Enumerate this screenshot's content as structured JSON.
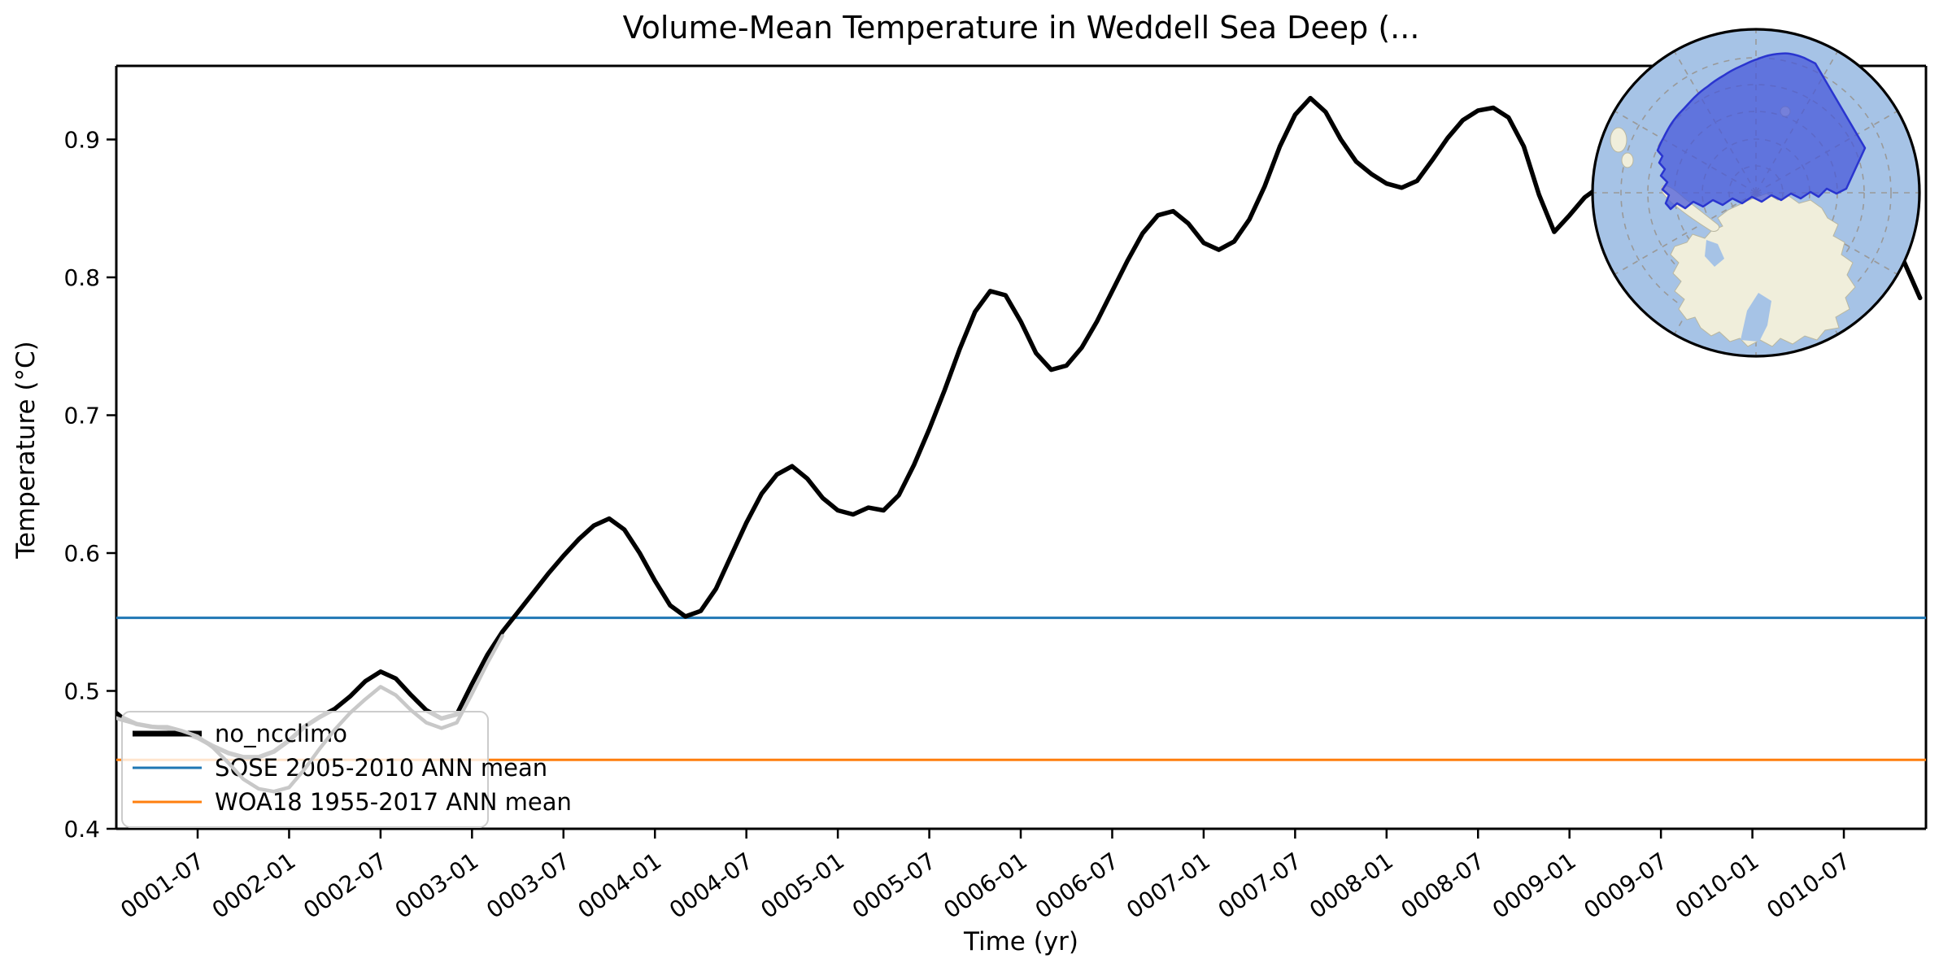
{
  "title": "Volume-Mean Temperature in Weddell Sea Deep (...",
  "axes": {
    "xlabel": "Time (yr)",
    "ylabel": "Temperature (°C)",
    "x_tick_labels": [
      "0001-07",
      "0002-01",
      "0002-07",
      "0003-01",
      "0003-07",
      "0004-01",
      "0004-07",
      "0005-01",
      "0005-07",
      "0006-01",
      "0006-07",
      "0007-01",
      "0007-07",
      "0008-01",
      "0008-07",
      "0009-01",
      "0009-07",
      "0010-01",
      "0010-07"
    ],
    "y_tick_labels": [
      "0.4",
      "0.5",
      "0.6",
      "0.7",
      "0.8",
      "0.9"
    ]
  },
  "legend": {
    "items": [
      {
        "label": "no_ncclimo",
        "color": "#000000",
        "sample_width": 7
      },
      {
        "label": "SOSE 2005-2010 ANN mean",
        "color": "#1f77b4",
        "sample_width": 3
      },
      {
        "label": "WOA18 1955-2017 ANN mean",
        "color": "#ff7f0e",
        "sample_width": 3
      }
    ]
  },
  "chart_data": {
    "type": "line",
    "title": "Volume-Mean Temperature in Weddell Sea Deep (...",
    "xlabel": "Time (yr)",
    "ylabel": "Temperature (°C)",
    "x_axis": {
      "kind": "monthly-time",
      "start_label": "0001-01",
      "tick_labels": [
        "0001-07",
        "0002-01",
        "0002-07",
        "0003-01",
        "0003-07",
        "0004-01",
        "0004-07",
        "0005-01",
        "0005-07",
        "0006-01",
        "0006-07",
        "0007-01",
        "0007-07",
        "0008-01",
        "0008-07",
        "0009-01",
        "0009-07",
        "0010-01",
        "0010-07"
      ],
      "tick_months": [
        6,
        12,
        18,
        24,
        30,
        36,
        42,
        48,
        54,
        60,
        66,
        72,
        78,
        84,
        90,
        96,
        102,
        108,
        114
      ],
      "xlim_months": [
        0.66,
        119.5
      ],
      "tick_rotation_deg": -35
    },
    "y_axis": {
      "ticks": [
        0.4,
        0.5,
        0.6,
        0.7,
        0.8,
        0.9
      ],
      "ylim": [
        0.4,
        0.9534
      ],
      "grid": false
    },
    "legend_position": "lower-left",
    "series": [
      {
        "name": "no_ncclimo",
        "role": "running-mean",
        "color": "#000000",
        "line_width": 5.5,
        "start_month": 0,
        "values": [
          0.49,
          0.481,
          0.476,
          0.474,
          0.473,
          0.47,
          0.466,
          0.46,
          0.455,
          0.452,
          0.452,
          0.456,
          0.464,
          0.474,
          0.481,
          0.487,
          0.496,
          0.507,
          0.514,
          0.509,
          0.497,
          0.486,
          0.48,
          0.483,
          0.505,
          0.526,
          0.543,
          0.557,
          0.571,
          0.585,
          0.598,
          0.61,
          0.62,
          0.625,
          0.617,
          0.6,
          0.58,
          0.562,
          0.554,
          0.558,
          0.574,
          0.598,
          0.622,
          0.643,
          0.657,
          0.663,
          0.654,
          0.64,
          0.631,
          0.628,
          0.633,
          0.631,
          0.642,
          0.664,
          0.69,
          0.718,
          0.748,
          0.775,
          0.79,
          0.787,
          0.768,
          0.745,
          0.733,
          0.736,
          0.749,
          0.768,
          0.79,
          0.812,
          0.832,
          0.845,
          0.848,
          0.839,
          0.825,
          0.82,
          0.826,
          0.842,
          0.866,
          0.895,
          0.918,
          0.93,
          0.92,
          0.9,
          0.884,
          0.875,
          0.868,
          0.865,
          0.87,
          0.885,
          0.901,
          0.914,
          0.921,
          0.923,
          0.916,
          0.895,
          0.86,
          0.833,
          0.845,
          0.858,
          0.866,
          0.873,
          0.884,
          0.897,
          0.905,
          0.908,
          0.9,
          0.884,
          0.866,
          0.852,
          0.845,
          0.85,
          0.862,
          0.876,
          0.886,
          0.89,
          0.885,
          0.872,
          0.854,
          0.833,
          0.81,
          0.785
        ]
      },
      {
        "name": "unsmoothed-monthly",
        "role": "monthly-values",
        "color": "#c8c8c8",
        "line_width": 4.5,
        "start_month": 0,
        "above_legend": true,
        "values": [
          0.483,
          0.479,
          0.476,
          0.474,
          0.474,
          0.471,
          0.467,
          0.459,
          0.448,
          0.436,
          0.429,
          0.427,
          0.43,
          0.443,
          0.458,
          0.472,
          0.484,
          0.494,
          0.503,
          0.497,
          0.486,
          0.477,
          0.473,
          0.477,
          0.498,
          0.52,
          0.54
        ]
      },
      {
        "name": "SOSE 2005-2010 ANN mean",
        "role": "reference-mean",
        "color": "#1f77b4",
        "line_width": 3,
        "constant_value": 0.553
      },
      {
        "name": "WOA18 1955-2017 ANN mean",
        "role": "reference-mean",
        "color": "#ff7f0e",
        "line_width": 3,
        "constant_value": 0.45
      }
    ],
    "inset_map": {
      "description": "South polar stereographic inset showing the Weddell Sea region highlighted",
      "ocean_color": "#a6c3e6",
      "land_color": "#f0eedb",
      "region_fill": "#4556d9",
      "region_fill_opacity": 0.72,
      "region_edge": "#2a35cf",
      "graticule_color": "#999999",
      "border_color": "#000000"
    }
  }
}
